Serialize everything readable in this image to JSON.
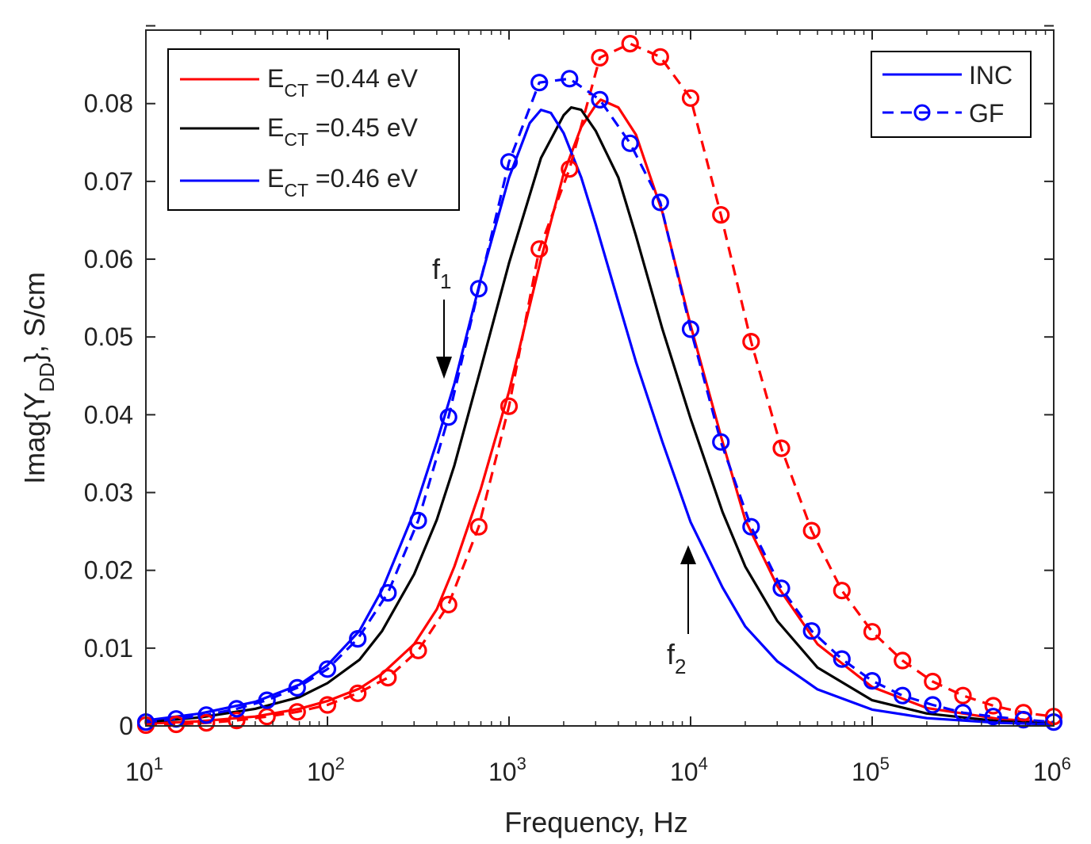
{
  "chart_data": {
    "type": "line",
    "xlabel": "Frequency, Hz",
    "ylabel_parts": {
      "pre": "Imag{Y",
      "sub": "DD",
      "post": "}, S/cm"
    },
    "xscale": "log",
    "xlim": [
      10,
      1000000
    ],
    "ylim": [
      0,
      0.09
    ],
    "grid": false,
    "x_tick_bases": [
      "10",
      "10",
      "10",
      "10",
      "10",
      "10"
    ],
    "x_tick_exps": [
      "1",
      "2",
      "3",
      "4",
      "5",
      "6"
    ],
    "y_tick_labels": [
      "0",
      "0.01",
      "0.02",
      "0.03",
      "0.04",
      "0.05",
      "0.06",
      "0.07",
      "0.08"
    ],
    "legend_ect": {
      "position": "top-left",
      "entries": [
        {
          "pre": "E",
          "sub": "CT",
          "post": " =0.44 eV",
          "color": "#ff0000"
        },
        {
          "pre": "E",
          "sub": "CT",
          "post": " =0.45 eV",
          "color": "#000000"
        },
        {
          "pre": "E",
          "sub": "CT",
          "post": " =0.46 eV",
          "color": "#0000ff"
        }
      ]
    },
    "legend_method": {
      "position": "top-right",
      "entries": [
        {
          "label": "INC",
          "style": "solid"
        },
        {
          "label": "GF",
          "style": "dashed-circle"
        }
      ]
    },
    "annotations": [
      {
        "base": "f",
        "sub": "1",
        "at_x": 450,
        "arrow": "down"
      },
      {
        "base": "f",
        "sub": "2",
        "at_x": 9000,
        "arrow": "up"
      }
    ],
    "colors": {
      "red": "#ff0000",
      "black": "#000000",
      "blue": "#0000ff",
      "axis": "#262626"
    },
    "gf_x": [
      10,
      14.68,
      21.54,
      31.62,
      46.42,
      68.13,
      100,
      146.8,
      215.4,
      316.2,
      464.2,
      681.3,
      1000,
      1468,
      2154,
      3162,
      4642,
      6813,
      10000,
      14680,
      21540,
      31620,
      46420,
      68130,
      100000,
      146800,
      215400,
      316200,
      464200,
      681300,
      1000000
    ],
    "series": [
      {
        "name": "INC E_CT=0.44 eV",
        "color": "#ff0000",
        "style": "solid",
        "x": [
          10,
          20,
          40,
          70,
          100,
          150,
          200,
          300,
          400,
          500,
          700,
          1000,
          1500,
          2000,
          2500,
          3000,
          3200,
          4000,
          5000,
          7000,
          10000,
          15000,
          20000,
          30000,
          50000,
          100000,
          200000,
          500000,
          1000000
        ],
        "values": [
          0.0003,
          0.0006,
          0.0012,
          0.0022,
          0.0032,
          0.0048,
          0.0067,
          0.0105,
          0.015,
          0.0205,
          0.0305,
          0.043,
          0.06,
          0.071,
          0.077,
          0.0798,
          0.0805,
          0.0795,
          0.076,
          0.066,
          0.0515,
          0.0365,
          0.0265,
          0.018,
          0.0105,
          0.005,
          0.0023,
          0.0009,
          0.0004
        ]
      },
      {
        "name": "INC E_CT=0.45 eV",
        "color": "#000000",
        "style": "solid",
        "x": [
          10,
          20,
          40,
          70,
          100,
          150,
          200,
          300,
          400,
          500,
          700,
          1000,
          1500,
          2000,
          2200,
          2500,
          3000,
          4000,
          5000,
          7000,
          10000,
          15000,
          20000,
          30000,
          50000,
          100000,
          200000,
          500000,
          1000000
        ],
        "values": [
          0.0005,
          0.0011,
          0.0022,
          0.0037,
          0.0055,
          0.0085,
          0.0122,
          0.0195,
          0.0265,
          0.0335,
          0.046,
          0.0595,
          0.073,
          0.0785,
          0.0795,
          0.0792,
          0.0765,
          0.0705,
          0.063,
          0.051,
          0.0395,
          0.0275,
          0.0205,
          0.0135,
          0.0075,
          0.0033,
          0.0016,
          0.0006,
          0.0003
        ]
      },
      {
        "name": "INC E_CT=0.46 eV",
        "color": "#0000ff",
        "style": "solid",
        "x": [
          10,
          20,
          40,
          70,
          100,
          150,
          200,
          300,
          400,
          500,
          700,
          1000,
          1300,
          1500,
          1700,
          2000,
          2500,
          3000,
          4000,
          5000,
          7000,
          10000,
          15000,
          20000,
          30000,
          50000,
          100000,
          200000,
          500000,
          1000000
        ],
        "values": [
          0.0007,
          0.0016,
          0.0031,
          0.0053,
          0.0078,
          0.0122,
          0.0175,
          0.0275,
          0.0365,
          0.044,
          0.0575,
          0.0705,
          0.0775,
          0.0792,
          0.0788,
          0.0762,
          0.0705,
          0.0645,
          0.0545,
          0.0468,
          0.0365,
          0.0262,
          0.0178,
          0.0128,
          0.0083,
          0.0047,
          0.0021,
          0.001,
          0.0004,
          0.0002
        ]
      },
      {
        "name": "GF E_CT=0.44 eV",
        "color": "#ff0000",
        "style": "dashed-circle",
        "values": [
          0.0001,
          0.0002,
          0.0004,
          0.0007,
          0.0012,
          0.0018,
          0.0027,
          0.0042,
          0.0062,
          0.0097,
          0.0156,
          0.0256,
          0.0411,
          0.0613,
          0.0716,
          0.0859,
          0.0877,
          0.086,
          0.0807,
          0.0657,
          0.0494,
          0.0357,
          0.0251,
          0.0174,
          0.0121,
          0.0084,
          0.0057,
          0.0039,
          0.0026,
          0.0017,
          0.0012
        ]
      },
      {
        "name": "GF E_CT=0.46 eV",
        "color": "#0000ff",
        "style": "dashed-circle",
        "values": [
          0.0005,
          0.0009,
          0.0014,
          0.0022,
          0.0033,
          0.0049,
          0.0073,
          0.0112,
          0.0171,
          0.0264,
          0.0397,
          0.0562,
          0.0725,
          0.0827,
          0.0832,
          0.0805,
          0.0749,
          0.0673,
          0.051,
          0.0365,
          0.0256,
          0.0177,
          0.0122,
          0.0086,
          0.0058,
          0.0039,
          0.0027,
          0.0017,
          0.0012,
          0.0008,
          0.0005
        ]
      }
    ]
  }
}
